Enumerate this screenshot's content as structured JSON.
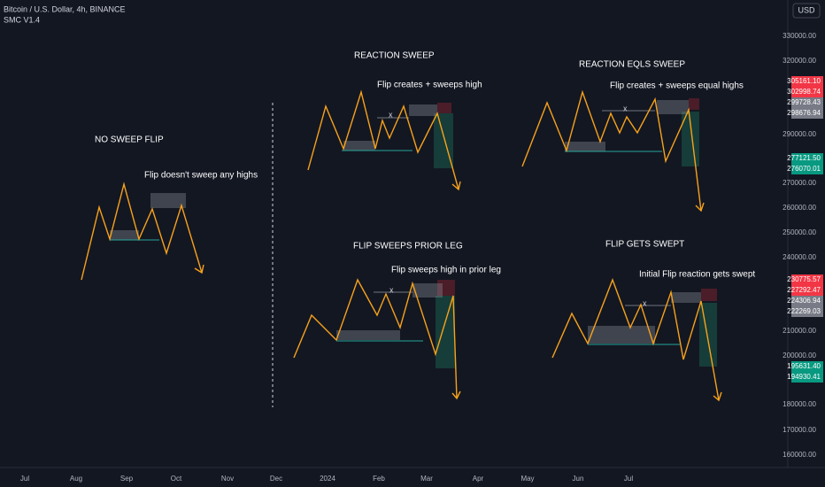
{
  "header": {
    "symbol": "Bitcoin / U.S. Dollar, 4h, BINANCE",
    "indicator": "SMC V1.4",
    "currency": "USD"
  },
  "price_axis": {
    "ticks": [
      "330000.00",
      "320000.00",
      "290000.00",
      "270000.00",
      "260000.00",
      "250000.00",
      "240000.00",
      "210000.00",
      "200000.00",
      "180000.00",
      "170000.00",
      "160000.00"
    ],
    "tags": [
      "305161.10",
      "302998.74",
      "299728.43",
      "298676.94",
      "277121.50",
      "276070.01",
      "230775.57",
      "227292.47",
      "224306.94",
      "222269.03",
      "195631.40",
      "194930.41"
    ]
  },
  "time_axis": {
    "labels": [
      "Jul",
      "Aug",
      "Sep",
      "Oct",
      "Nov",
      "Dec",
      "2024",
      "Feb",
      "Mar",
      "Apr",
      "May",
      "Jun",
      "Jul"
    ]
  },
  "annotations": [
    {
      "title": "NO SWEEP FLIP",
      "note": "Flip doesn't sweep any highs"
    },
    {
      "title": "REACTION SWEEP",
      "note": "Flip creates + sweeps high"
    },
    {
      "title": "REACTION EQLS SWEEP",
      "note": "Flip creates + sweeps equal highs"
    },
    {
      "title": "FLIP SWEEPS PRIOR LEG",
      "note": "Flip sweeps high in prior leg"
    },
    {
      "title": "FLIP GETS SWEPT",
      "note": "Initial Flip reaction gets swept"
    }
  ],
  "marker": "x"
}
